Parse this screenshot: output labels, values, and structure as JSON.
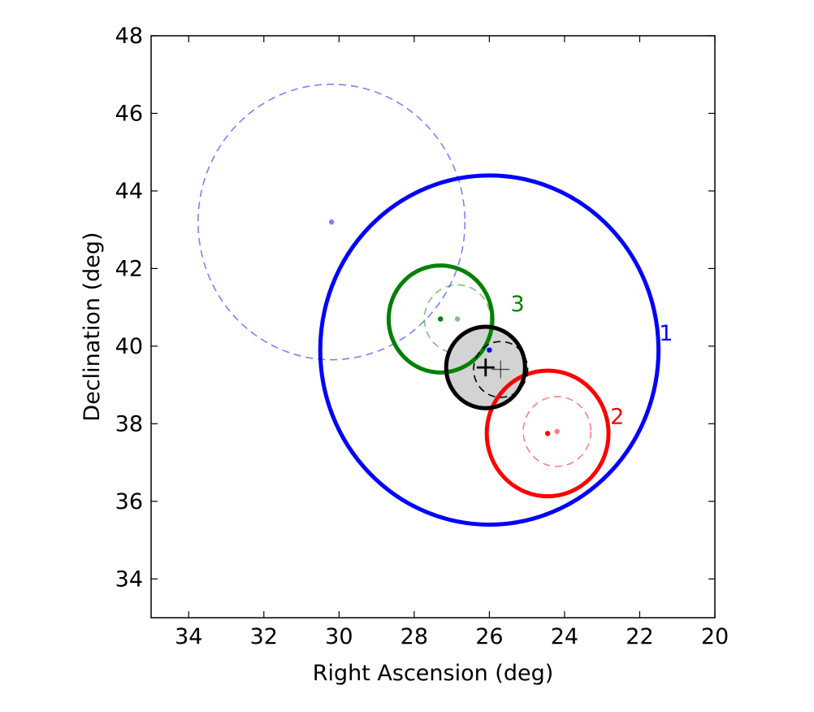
{
  "chart_data": {
    "type": "scatter",
    "xlabel": "Right Ascension (deg)",
    "ylabel": "Declination (deg)",
    "xlim": [
      35,
      20
    ],
    "ylim": [
      33,
      48
    ],
    "xticks": [
      {
        "value": 34,
        "label": "34"
      },
      {
        "value": 32,
        "label": "32"
      },
      {
        "value": 30,
        "label": "30"
      },
      {
        "value": 28,
        "label": "28"
      },
      {
        "value": 26,
        "label": "26"
      },
      {
        "value": 24,
        "label": "24"
      },
      {
        "value": 22,
        "label": "22"
      },
      {
        "value": 20,
        "label": "20"
      }
    ],
    "yticks": [
      {
        "value": 34,
        "label": "34"
      },
      {
        "value": 36,
        "label": "36"
      },
      {
        "value": 38,
        "label": "38"
      },
      {
        "value": 40,
        "label": "40"
      },
      {
        "value": 42,
        "label": "42"
      },
      {
        "value": 44,
        "label": "44"
      },
      {
        "value": 46,
        "label": "46"
      },
      {
        "value": 48,
        "label": "48"
      }
    ],
    "colors": {
      "series1": "#0000ff",
      "series2": "#ff0000",
      "series3": "#008000",
      "truth": "#000000",
      "truth_fill": "#d3d3d3"
    },
    "truth": {
      "ra": 26.1,
      "dec": 39.45,
      "radius_deg": 1.05,
      "marker": {
        "ra": 26.1,
        "dec": 39.45
      },
      "estimate": {
        "ra": 25.7,
        "dec": 39.4,
        "radius_deg": 0.72
      }
    },
    "series": [
      {
        "name": "1",
        "solid": {
          "ra": 26.0,
          "dec": 39.9,
          "radius_deg": 4.5
        },
        "dashed": {
          "ra": 30.2,
          "dec": 43.2,
          "radius_deg": 3.55
        },
        "label": {
          "ra": 21.3,
          "dec": 40.3
        }
      },
      {
        "name": "2",
        "solid": {
          "ra": 24.45,
          "dec": 37.75,
          "radius_deg": 1.62
        },
        "dashed": {
          "ra": 24.2,
          "dec": 37.8,
          "radius_deg": 0.9
        },
        "label": {
          "ra": 22.6,
          "dec": 38.15
        }
      },
      {
        "name": "3",
        "solid": {
          "ra": 27.3,
          "dec": 40.7,
          "radius_deg": 1.38
        },
        "dashed": {
          "ra": 26.85,
          "dec": 40.7,
          "radius_deg": 0.88
        },
        "label": {
          "ra": 25.25,
          "dec": 41.05
        }
      }
    ]
  }
}
